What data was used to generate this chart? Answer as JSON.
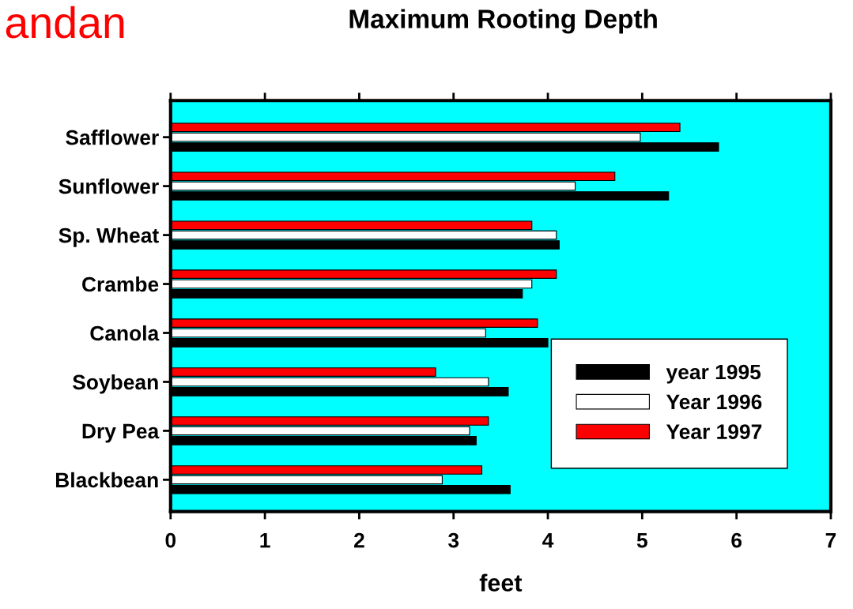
{
  "chart_data": {
    "type": "bar",
    "orientation": "horizontal",
    "title": "Maximum Rooting Depth",
    "xlabel": "feet",
    "annotations": [
      "andan"
    ],
    "categories": [
      "Safflower",
      "Sunflower",
      "Sp. Wheat",
      "Crambe",
      "Canola",
      "Soybean",
      "Dry Pea",
      "Blackbean"
    ],
    "series": [
      {
        "name": "year 1995",
        "color": "#000000",
        "values": [
          5.81,
          5.28,
          4.12,
          3.73,
          4.0,
          3.58,
          3.24,
          3.6
        ]
      },
      {
        "name": "Year 1996",
        "color": "#ffffff",
        "values": [
          4.98,
          4.29,
          4.09,
          3.83,
          3.34,
          3.37,
          3.17,
          2.88
        ]
      },
      {
        "name": "Year 1997",
        "color": "#ff0000",
        "values": [
          5.4,
          4.71,
          3.83,
          4.09,
          3.89,
          2.81,
          3.37,
          3.3
        ]
      }
    ],
    "xlim": [
      0,
      7
    ],
    "xticks": [
      0,
      1,
      2,
      3,
      4,
      5,
      6,
      7
    ],
    "grid": false,
    "legend": "bottom right"
  }
}
